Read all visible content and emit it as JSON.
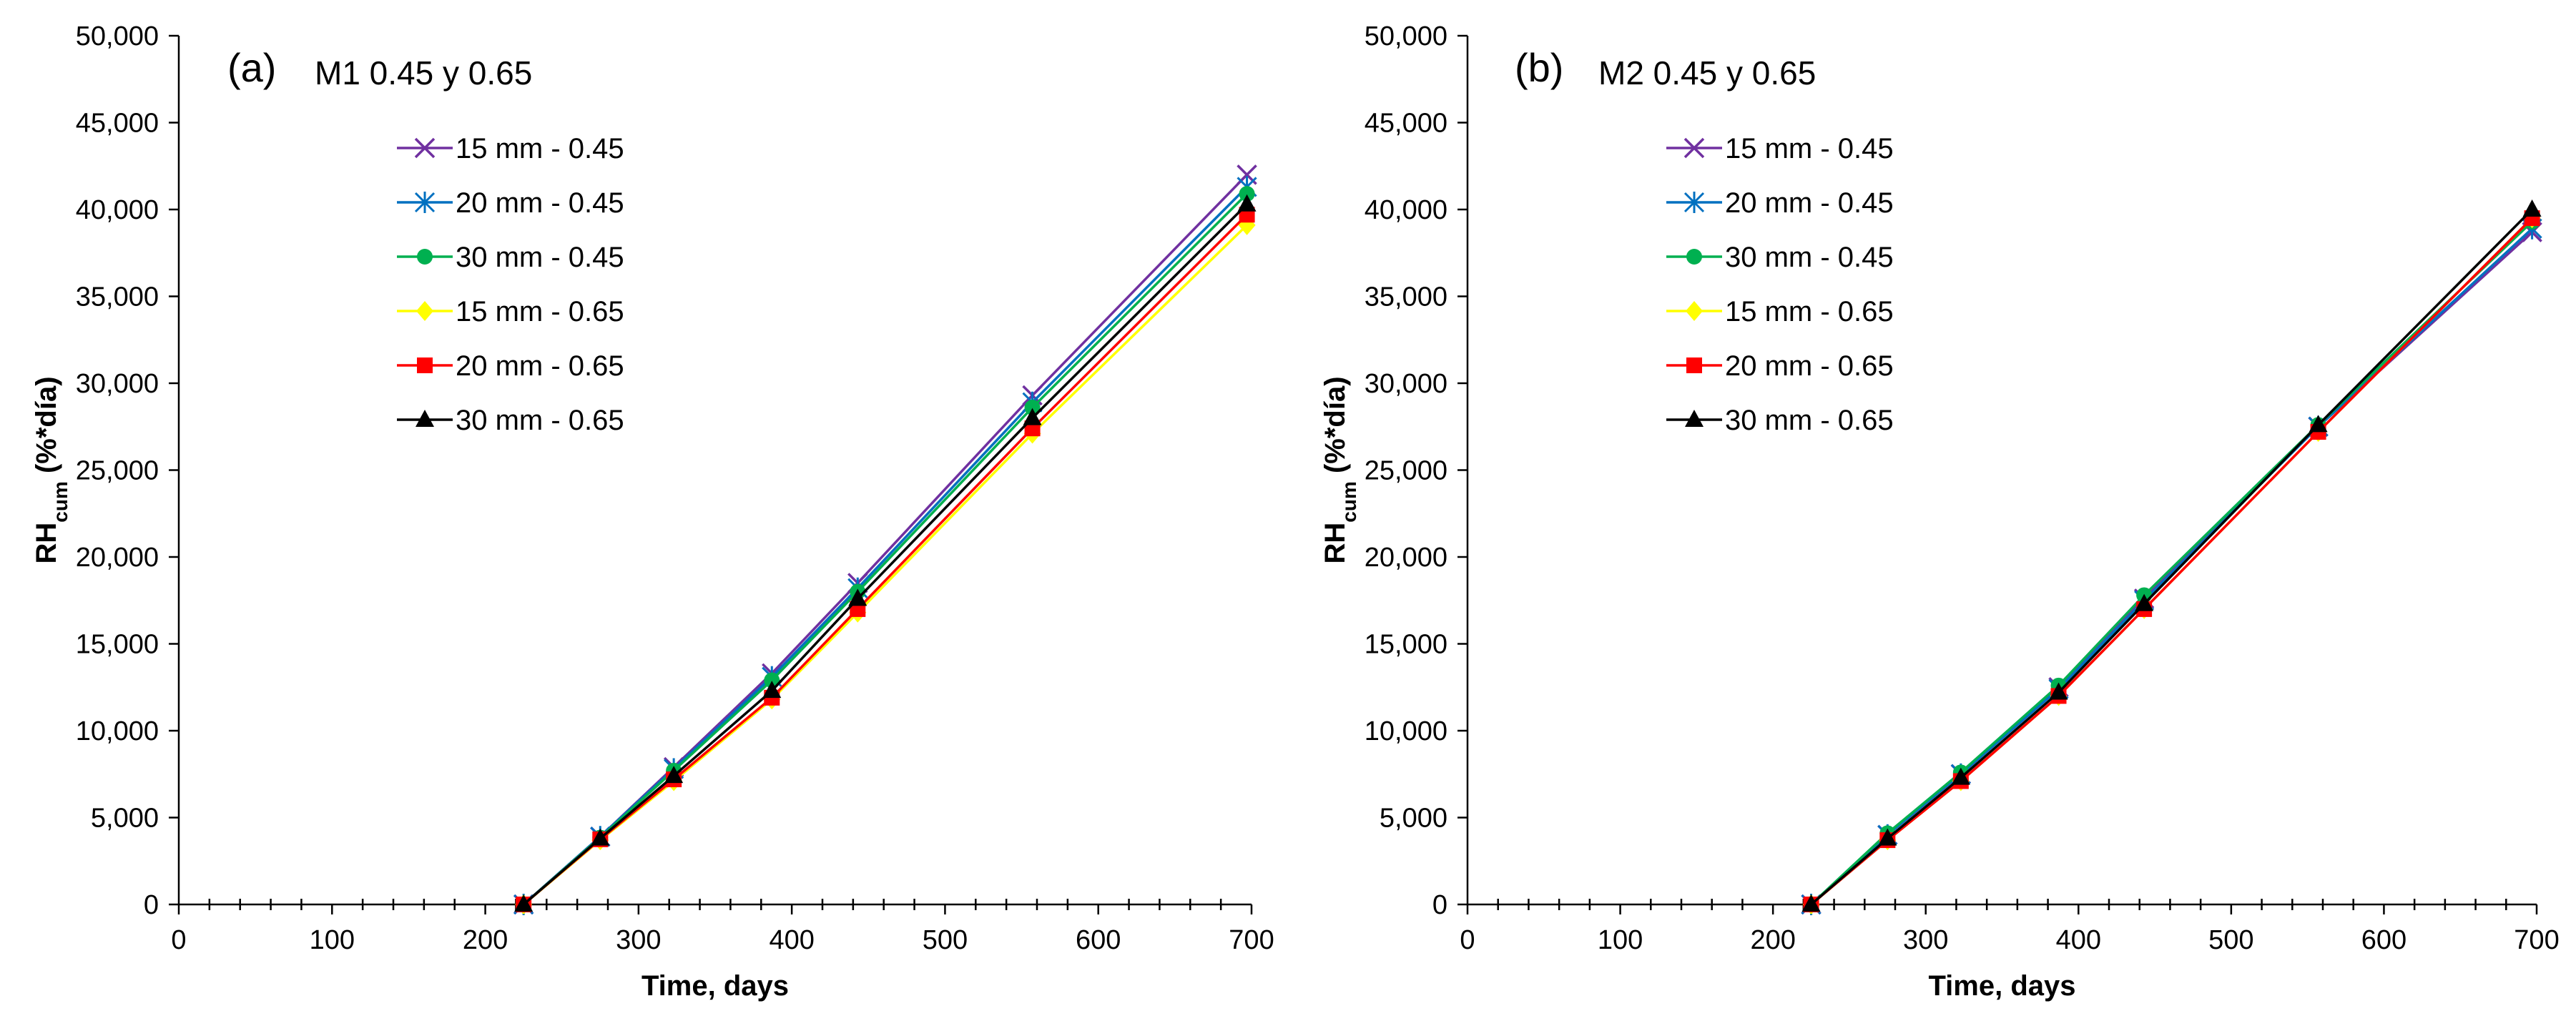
{
  "chart_data": [
    {
      "type": "line",
      "panel_label": "(a)",
      "title": "M1 0.45 y 0.65",
      "xlabel": "Time, days",
      "ylabel_main": "RH",
      "ylabel_sub": "cum",
      "ylabel_suffix": " (%*día)",
      "xlim": [
        0,
        700
      ],
      "ylim": [
        0,
        50000
      ],
      "xticks": [
        0,
        100,
        200,
        300,
        400,
        500,
        600,
        700
      ],
      "xtick_labels": [
        "0",
        "100",
        "200",
        "300",
        "400",
        "500",
        "600",
        "700"
      ],
      "yticks": [
        0,
        5000,
        10000,
        15000,
        20000,
        25000,
        30000,
        35000,
        40000,
        45000,
        50000
      ],
      "ytick_labels": [
        "0",
        "5,000",
        "10,000",
        "15,000",
        "20,000",
        "25,000",
        "30,000",
        "35,000",
        "40,000",
        "45,000",
        "50,000"
      ],
      "grid": false,
      "legend_position": "upper-left",
      "x": [
        225,
        275,
        323,
        387,
        443,
        557,
        697
      ],
      "series": [
        {
          "name": "15 mm - 0.45",
          "color": "#7030A0",
          "marker": "x",
          "values": [
            0,
            3900,
            7900,
            13300,
            18500,
            29300,
            42000
          ]
        },
        {
          "name": "20 mm - 0.45",
          "color": "#0070C0",
          "marker": "asterisk",
          "values": [
            0,
            3900,
            7800,
            13100,
            18200,
            28900,
            41300
          ]
        },
        {
          "name": "30 mm - 0.45",
          "color": "#00B050",
          "marker": "circle",
          "values": [
            0,
            3850,
            7700,
            12900,
            18000,
            28600,
            40900
          ]
        },
        {
          "name": "15 mm - 0.65",
          "color": "#FFFF00",
          "marker": "diamond",
          "values": [
            0,
            3700,
            7100,
            11800,
            16800,
            27100,
            39100
          ]
        },
        {
          "name": "20 mm - 0.65",
          "color": "#FF0000",
          "marker": "square",
          "values": [
            0,
            3750,
            7200,
            11900,
            17000,
            27400,
            39700
          ]
        },
        {
          "name": "30 mm - 0.65",
          "color": "#000000",
          "marker": "triangle",
          "values": [
            0,
            3800,
            7400,
            12300,
            17600,
            28000,
            40300
          ]
        }
      ]
    },
    {
      "type": "line",
      "panel_label": "(b)",
      "title": "M2 0.45 y 0.65",
      "xlabel": "Time, days",
      "ylabel_main": "RH",
      "ylabel_sub": "cum",
      "ylabel_suffix": " (%*día)",
      "xlim": [
        0,
        700
      ],
      "ylim": [
        0,
        50000
      ],
      "xticks": [
        0,
        100,
        200,
        300,
        400,
        500,
        600,
        700
      ],
      "xtick_labels": [
        "0",
        "100",
        "200",
        "300",
        "400",
        "500",
        "600",
        "700"
      ],
      "yticks": [
        0,
        5000,
        10000,
        15000,
        20000,
        25000,
        30000,
        35000,
        40000,
        45000,
        50000
      ],
      "ytick_labels": [
        "0",
        "5,000",
        "10,000",
        "15,000",
        "20,000",
        "25,000",
        "30,000",
        "35,000",
        "40,000",
        "45,000",
        "50,000"
      ],
      "grid": false,
      "legend_position": "upper-left",
      "x": [
        225,
        275,
        323,
        387,
        443,
        557,
        697
      ],
      "series": [
        {
          "name": "15 mm - 0.45",
          "color": "#7030A0",
          "marker": "x",
          "values": [
            0,
            4000,
            7500,
            12500,
            17600,
            27500,
            38700
          ]
        },
        {
          "name": "20 mm - 0.45",
          "color": "#0070C0",
          "marker": "asterisk",
          "values": [
            0,
            4000,
            7500,
            12400,
            17500,
            27500,
            38900
          ]
        },
        {
          "name": "30 mm - 0.45",
          "color": "#00B050",
          "marker": "circle",
          "values": [
            0,
            4100,
            7600,
            12600,
            17800,
            27600,
            39300
          ]
        },
        {
          "name": "15 mm - 0.65",
          "color": "#FFFF00",
          "marker": "diamond",
          "values": [
            0,
            3700,
            7100,
            12000,
            17000,
            27200,
            39500
          ]
        },
        {
          "name": "20 mm - 0.65",
          "color": "#FF0000",
          "marker": "square",
          "values": [
            0,
            3700,
            7100,
            12000,
            17000,
            27200,
            39500
          ]
        },
        {
          "name": "30 mm - 0.65",
          "color": "#000000",
          "marker": "triangle",
          "values": [
            0,
            3800,
            7300,
            12200,
            17300,
            27600,
            40000
          ]
        }
      ]
    }
  ]
}
